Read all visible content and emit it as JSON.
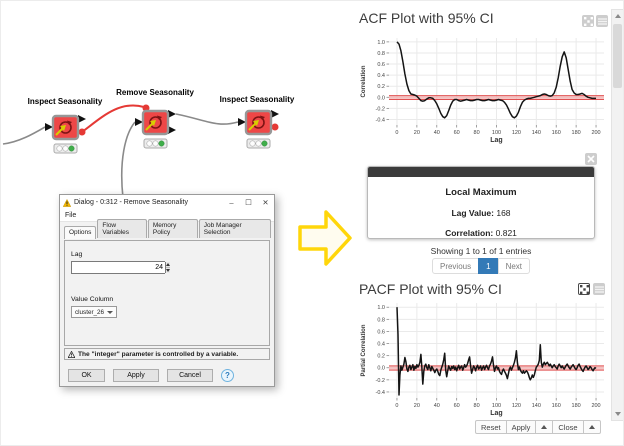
{
  "workflow": {
    "nodes": [
      {
        "label": "Inspect Seasonality"
      },
      {
        "label": "Remove Seasonality"
      },
      {
        "label": "Inspect Seasonality"
      }
    ]
  },
  "dialog": {
    "title": "Dialog - 0:312 - Remove Seasonality",
    "menu_file": "File",
    "tabs": [
      "Options",
      "Flow Variables",
      "Memory Policy",
      "Job Manager Selection"
    ],
    "lag_label": "Lag",
    "lag_value": "24",
    "value_column_label": "Value Column",
    "value_column_value": "cluster_26",
    "warning_text": "The \"integer\" parameter is controlled by a variable.",
    "ok_label": "OK",
    "apply_label": "Apply",
    "cancel_label": "Cancel",
    "help_label": "?",
    "window_controls": {
      "minimize": "–",
      "maximize": "☐",
      "close": "✕"
    }
  },
  "right_panel": {
    "acf_title": "ACF Plot with 95% CI",
    "pacf_title": "PACF Plot with 95% CI",
    "card": {
      "title": "Local Maximum",
      "lag_label": "Lag Value:",
      "lag_value": "168",
      "correlation_label": "Correlation:",
      "correlation_value": "0.821"
    },
    "showing_text": "Showing 1 to 1 of 1 entries",
    "pagination": {
      "previous": "Previous",
      "page": "1",
      "next": "Next"
    },
    "footer": {
      "reset": "Reset",
      "apply": "Apply",
      "close": "Close"
    }
  },
  "colors": {
    "node_red": "#ee4747",
    "wire_red": "#e53935",
    "status_green": "#3fae4a",
    "pager_blue": "#337ab7",
    "arrow_yellow": "#ffd60a",
    "ci_band": "#f2a0a0",
    "ci_edge": "#e05252"
  },
  "chart_data": [
    {
      "type": "line",
      "title": "ACF Plot with 95% CI",
      "xlabel": "Lag",
      "ylabel": "Correlation",
      "xlim": [
        -8,
        208
      ],
      "ylim": [
        -0.5,
        1.07
      ],
      "xticks": [
        0,
        20,
        40,
        60,
        80,
        100,
        120,
        140,
        160,
        180,
        200
      ],
      "yticks": [
        1.0,
        0.8,
        0.6,
        0.4,
        0.2,
        0.0,
        -0.2,
        -0.4
      ],
      "ci_band": [
        -0.04,
        0.03
      ],
      "points": [
        [
          0,
          1.0
        ],
        [
          2,
          0.96
        ],
        [
          4,
          0.84
        ],
        [
          6,
          0.64
        ],
        [
          8,
          0.42
        ],
        [
          10,
          0.24
        ],
        [
          12,
          0.12
        ],
        [
          14,
          0.06
        ],
        [
          16,
          0.05
        ],
        [
          18,
          0.04
        ],
        [
          20,
          0.02
        ],
        [
          22,
          -0.02
        ],
        [
          24,
          -0.06
        ],
        [
          26,
          -0.07
        ],
        [
          28,
          -0.06
        ],
        [
          30,
          -0.03
        ],
        [
          32,
          -0.01
        ],
        [
          34,
          -0.01
        ],
        [
          36,
          -0.02
        ],
        [
          38,
          -0.06
        ],
        [
          40,
          -0.12
        ],
        [
          42,
          -0.2
        ],
        [
          44,
          -0.29
        ],
        [
          46,
          -0.35
        ],
        [
          48,
          -0.37
        ],
        [
          50,
          -0.33
        ],
        [
          52,
          -0.24
        ],
        [
          54,
          -0.14
        ],
        [
          56,
          -0.07
        ],
        [
          58,
          -0.04
        ],
        [
          60,
          -0.04
        ],
        [
          62,
          -0.06
        ],
        [
          64,
          -0.07
        ],
        [
          66,
          -0.06
        ],
        [
          68,
          -0.05
        ],
        [
          70,
          -0.04
        ],
        [
          72,
          -0.05
        ],
        [
          74,
          -0.06
        ],
        [
          76,
          -0.06
        ],
        [
          78,
          -0.05
        ],
        [
          80,
          -0.04
        ],
        [
          82,
          -0.04
        ],
        [
          84,
          -0.05
        ],
        [
          86,
          -0.06
        ],
        [
          88,
          -0.06
        ],
        [
          90,
          -0.05
        ],
        [
          92,
          -0.04
        ],
        [
          94,
          -0.05
        ],
        [
          96,
          -0.06
        ],
        [
          98,
          -0.06
        ],
        [
          100,
          -0.05
        ],
        [
          102,
          -0.04
        ],
        [
          104,
          -0.05
        ],
        [
          106,
          -0.06
        ],
        [
          108,
          -0.09
        ],
        [
          110,
          -0.14
        ],
        [
          112,
          -0.21
        ],
        [
          114,
          -0.29
        ],
        [
          116,
          -0.35
        ],
        [
          118,
          -0.37
        ],
        [
          120,
          -0.34
        ],
        [
          122,
          -0.27
        ],
        [
          124,
          -0.17
        ],
        [
          126,
          -0.09
        ],
        [
          128,
          -0.05
        ],
        [
          130,
          -0.03
        ],
        [
          132,
          -0.02
        ],
        [
          134,
          -0.02
        ],
        [
          136,
          -0.01
        ],
        [
          138,
          0.0
        ],
        [
          140,
          0.01
        ],
        [
          142,
          0.02
        ],
        [
          144,
          0.03
        ],
        [
          146,
          0.05
        ],
        [
          148,
          0.06
        ],
        [
          150,
          0.05
        ],
        [
          152,
          0.03
        ],
        [
          154,
          0.02
        ],
        [
          156,
          0.03
        ],
        [
          158,
          0.08
        ],
        [
          160,
          0.18
        ],
        [
          162,
          0.35
        ],
        [
          164,
          0.56
        ],
        [
          166,
          0.73
        ],
        [
          168,
          0.82
        ],
        [
          170,
          0.71
        ],
        [
          172,
          0.5
        ],
        [
          174,
          0.29
        ],
        [
          176,
          0.14
        ],
        [
          178,
          0.08
        ],
        [
          180,
          0.05
        ],
        [
          182,
          0.05
        ],
        [
          184,
          0.06
        ],
        [
          186,
          0.07
        ],
        [
          188,
          0.05
        ],
        [
          190,
          0.02
        ],
        [
          192,
          0.0
        ],
        [
          194,
          -0.01
        ],
        [
          196,
          -0.02
        ],
        [
          198,
          -0.02
        ],
        [
          200,
          -0.02
        ]
      ]
    },
    {
      "type": "line",
      "title": "PACF Plot with 95% CI",
      "xlabel": "Lag",
      "ylabel": "Partial Correlation",
      "xlim": [
        -8,
        208
      ],
      "ylim": [
        -0.5,
        1.07
      ],
      "xticks": [
        0,
        20,
        40,
        60,
        80,
        100,
        120,
        140,
        160,
        180,
        200
      ],
      "yticks": [
        1.0,
        0.8,
        0.6,
        0.4,
        0.2,
        0.0,
        -0.2,
        -0.4
      ],
      "ci_band": [
        -0.04,
        0.03
      ],
      "points": [
        [
          0,
          1.0
        ],
        [
          1,
          0.55
        ],
        [
          2,
          -0.45
        ],
        [
          3,
          -0.12
        ],
        [
          4,
          0.03
        ],
        [
          5,
          -0.04
        ],
        [
          6,
          0.01
        ],
        [
          7,
          0.06
        ],
        [
          8,
          0.17
        ],
        [
          9,
          0.1
        ],
        [
          10,
          -0.02
        ],
        [
          11,
          -0.06
        ],
        [
          12,
          0.01
        ],
        [
          13,
          0.04
        ],
        [
          14,
          -0.03
        ],
        [
          15,
          0.01
        ],
        [
          16,
          0.05
        ],
        [
          17,
          -0.04
        ],
        [
          18,
          0.02
        ],
        [
          19,
          -0.01
        ],
        [
          20,
          0.05
        ],
        [
          21,
          0.01
        ],
        [
          22,
          0.04
        ],
        [
          23,
          0.09
        ],
        [
          24,
          0.22
        ],
        [
          25,
          0.02
        ],
        [
          26,
          -0.27
        ],
        [
          27,
          -0.06
        ],
        [
          28,
          0.03
        ],
        [
          29,
          0.06
        ],
        [
          30,
          0.0
        ],
        [
          31,
          -0.03
        ],
        [
          32,
          0.05
        ],
        [
          33,
          0.0
        ],
        [
          34,
          -0.05
        ],
        [
          35,
          0.02
        ],
        [
          36,
          -0.01
        ],
        [
          37,
          -0.04
        ],
        [
          38,
          -0.08
        ],
        [
          39,
          -0.04
        ],
        [
          40,
          -0.02
        ],
        [
          41,
          -0.06
        ],
        [
          42,
          -0.11
        ],
        [
          43,
          -0.13
        ],
        [
          44,
          -0.04
        ],
        [
          45,
          0.01
        ],
        [
          46,
          0.06
        ],
        [
          47,
          0.13
        ],
        [
          48,
          0.24
        ],
        [
          49,
          -0.04
        ],
        [
          50,
          -0.15
        ],
        [
          51,
          -0.05
        ],
        [
          52,
          0.03
        ],
        [
          53,
          -0.01
        ],
        [
          54,
          -0.04
        ],
        [
          55,
          0.02
        ],
        [
          56,
          -0.01
        ],
        [
          57,
          0.03
        ],
        [
          58,
          -0.03
        ],
        [
          59,
          0.01
        ],
        [
          60,
          -0.05
        ],
        [
          61,
          0.0
        ],
        [
          62,
          0.04
        ],
        [
          63,
          -0.02
        ],
        [
          64,
          0.01
        ],
        [
          65,
          0.03
        ],
        [
          66,
          -0.04
        ],
        [
          67,
          0.0
        ],
        [
          68,
          0.05
        ],
        [
          69,
          0.01
        ],
        [
          70,
          0.03
        ],
        [
          71,
          0.07
        ],
        [
          72,
          0.13
        ],
        [
          73,
          0.18
        ],
        [
          74,
          0.03
        ],
        [
          75,
          -0.09
        ],
        [
          76,
          -0.03
        ],
        [
          77,
          0.03
        ],
        [
          78,
          0.0
        ],
        [
          79,
          -0.05
        ],
        [
          80,
          0.01
        ],
        [
          81,
          0.04
        ],
        [
          82,
          -0.02
        ],
        [
          83,
          0.0
        ],
        [
          84,
          0.03
        ],
        [
          85,
          -0.04
        ],
        [
          86,
          0.0
        ],
        [
          87,
          0.03
        ],
        [
          88,
          -0.03
        ],
        [
          89,
          0.01
        ],
        [
          90,
          0.04
        ],
        [
          91,
          0.0
        ],
        [
          92,
          -0.03
        ],
        [
          93,
          0.03
        ],
        [
          94,
          0.06
        ],
        [
          95,
          0.11
        ],
        [
          96,
          0.18
        ],
        [
          97,
          0.04
        ],
        [
          98,
          -0.06
        ],
        [
          99,
          0.0
        ],
        [
          100,
          0.03
        ],
        [
          101,
          -0.02
        ],
        [
          102,
          0.0
        ],
        [
          103,
          -0.06
        ],
        [
          104,
          -0.09
        ],
        [
          105,
          -0.11
        ],
        [
          106,
          -0.05
        ],
        [
          107,
          -0.02
        ],
        [
          108,
          -0.06
        ],
        [
          109,
          -0.09
        ],
        [
          110,
          -0.13
        ],
        [
          111,
          -0.18
        ],
        [
          112,
          -0.1
        ],
        [
          113,
          -0.02
        ],
        [
          114,
          0.01
        ],
        [
          115,
          -0.04
        ],
        [
          116,
          0.0
        ],
        [
          117,
          0.04
        ],
        [
          118,
          0.09
        ],
        [
          119,
          0.16
        ],
        [
          120,
          0.28
        ],
        [
          121,
          0.09
        ],
        [
          122,
          -0.03
        ],
        [
          123,
          0.01
        ],
        [
          124,
          -0.04
        ],
        [
          125,
          -0.07
        ],
        [
          126,
          -0.09
        ],
        [
          127,
          -0.05
        ],
        [
          128,
          -0.09
        ],
        [
          129,
          -0.07
        ],
        [
          130,
          -0.05
        ],
        [
          131,
          -0.07
        ],
        [
          132,
          -0.11
        ],
        [
          133,
          -0.16
        ],
        [
          134,
          -0.2
        ],
        [
          135,
          -0.17
        ],
        [
          136,
          -0.12
        ],
        [
          137,
          -0.16
        ],
        [
          138,
          -0.12
        ],
        [
          139,
          -0.05
        ],
        [
          140,
          0.01
        ],
        [
          141,
          0.03
        ],
        [
          142,
          0.06
        ],
        [
          143,
          0.12
        ],
        [
          144,
          0.38
        ],
        [
          145,
          0.09
        ],
        [
          146,
          0.01
        ],
        [
          147,
          0.06
        ],
        [
          148,
          0.09
        ],
        [
          149,
          0.05
        ],
        [
          150,
          0.07
        ],
        [
          151,
          0.09
        ],
        [
          152,
          0.06
        ],
        [
          153,
          0.03
        ],
        [
          154,
          0.06
        ],
        [
          155,
          0.03
        ],
        [
          156,
          0.0
        ],
        [
          157,
          0.03
        ],
        [
          158,
          0.05
        ],
        [
          159,
          0.02
        ],
        [
          160,
          0.0
        ],
        [
          161,
          -0.02
        ],
        [
          162,
          0.03
        ],
        [
          163,
          0.06
        ],
        [
          164,
          0.03
        ],
        [
          165,
          0.0
        ],
        [
          166,
          0.03
        ],
        [
          167,
          0.0
        ],
        [
          168,
          -0.02
        ],
        [
          169,
          0.01
        ],
        [
          170,
          0.04
        ],
        [
          171,
          0.06
        ],
        [
          172,
          0.03
        ],
        [
          173,
          0.0
        ],
        [
          174,
          -0.02
        ],
        [
          175,
          0.01
        ],
        [
          176,
          0.03
        ],
        [
          177,
          0.05
        ],
        [
          178,
          0.02
        ],
        [
          179,
          -0.01
        ],
        [
          180,
          -0.03
        ],
        [
          181,
          0.0
        ],
        [
          182,
          0.04
        ],
        [
          183,
          0.06
        ],
        [
          184,
          0.02
        ],
        [
          185,
          -0.01
        ],
        [
          186,
          -0.04
        ],
        [
          187,
          -0.06
        ],
        [
          188,
          -0.02
        ],
        [
          189,
          0.01
        ],
        [
          190,
          0.03
        ],
        [
          191,
          0.0
        ],
        [
          192,
          -0.03
        ],
        [
          193,
          -0.01
        ],
        [
          194,
          0.02
        ],
        [
          195,
          0.0
        ],
        [
          196,
          -0.03
        ],
        [
          197,
          -0.05
        ],
        [
          198,
          -0.02
        ],
        [
          199,
          0.0
        ],
        [
          200,
          -0.01
        ]
      ]
    }
  ]
}
